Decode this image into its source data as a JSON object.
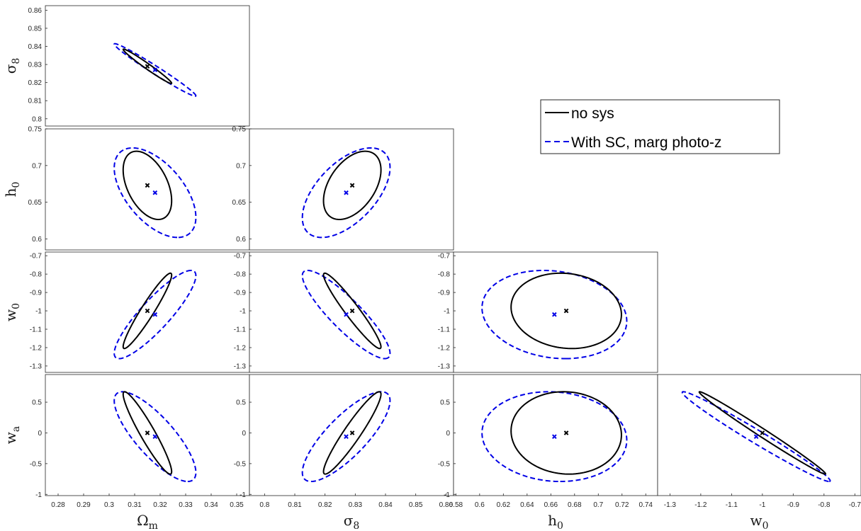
{
  "chart_data": {
    "type": "scatter",
    "description_kind": "triangle (corner) plot of 1-sigma Fisher ellipses",
    "legend": {
      "placement": "right, upper-middle",
      "entries": [
        {
          "label": "no sys",
          "color": "#000000",
          "style": "solid"
        },
        {
          "label": "With SC, marg photo-z",
          "color": "#0000e6",
          "style": "dashed"
        }
      ]
    },
    "colors": {
      "nosys": "#000000",
      "sc": "#0000e6",
      "frame": "#262626"
    },
    "params": {
      "om": {
        "label_base": "Ω",
        "label_sub": "m",
        "range": [
          0.275,
          0.355
        ],
        "ticks": [
          "0.28",
          "0.29",
          "0.3",
          "0.31",
          "0.32",
          "0.33",
          "0.34",
          "0.35"
        ]
      },
      "s8": {
        "label_base": "σ",
        "label_sub": "8",
        "range": [
          0.795,
          0.8625
        ],
        "ticks": [
          "0.8",
          "0.81",
          "0.82",
          "0.83",
          "0.84",
          "0.85",
          "0.86"
        ]
      },
      "h0": {
        "label_base": "h",
        "label_sub": "0",
        "range": [
          0.578,
          0.75
        ],
        "ticks": [
          "0.58",
          "0.6",
          "0.62",
          "0.64",
          "0.66",
          "0.68",
          "0.7",
          "0.72",
          "0.74"
        ]
      },
      "w0": {
        "label_base": "w",
        "label_sub": "0",
        "range": [
          -1.34,
          -0.68
        ],
        "ticks": [
          "-1.3",
          "-1.2",
          "-1.1",
          "-1",
          "-0.9",
          "-0.8",
          "-0.7"
        ]
      },
      "wa": {
        "label_base": "w",
        "label_sub": "a",
        "range": [
          -1.02,
          0.95
        ],
        "ticks": [
          "-1",
          "-0.5",
          "0",
          "0.5"
        ]
      }
    },
    "fiducial": {
      "nosys": {
        "om": 0.315,
        "s8": 0.829,
        "h0": 0.673,
        "w0": -1.0,
        "wa": 0.0
      },
      "sc": {
        "om": 0.318,
        "s8": 0.827,
        "h0": 0.663,
        "w0": -1.02,
        "wa": -0.06
      }
    },
    "panels": [
      {
        "x": "om",
        "y": "s8",
        "xlim": [
          0.275,
          0.355
        ],
        "ylim": [
          0.796,
          0.8625
        ],
        "yticks": [
          "0.8",
          "0.81",
          "0.82",
          "0.83",
          "0.84",
          "0.85",
          "0.86"
        ],
        "xticks": [],
        "ellipses": {
          "nosys": {
            "cx": 0.315,
            "cy": 0.829,
            "sx": 0.0095,
            "sy": 0.0095,
            "rho": -0.982
          },
          "sc": {
            "cx": 0.318,
            "cy": 0.827,
            "sx": 0.016,
            "sy": 0.0145,
            "rho": -0.984
          }
        }
      },
      {
        "x": "om",
        "y": "h0",
        "xlim": [
          0.275,
          0.355
        ],
        "ylim": [
          0.585,
          0.75
        ],
        "yticks": [
          "0.6",
          "0.65",
          "0.7",
          "0.75"
        ],
        "xticks": [],
        "ellipses": {
          "nosys": {
            "cx": 0.315,
            "cy": 0.673,
            "sx": 0.0095,
            "sy": 0.0465,
            "rho": -0.45
          },
          "sc": {
            "cx": 0.318,
            "cy": 0.663,
            "sx": 0.016,
            "sy": 0.061,
            "rho": -0.55
          }
        }
      },
      {
        "x": "s8",
        "y": "h0",
        "xlim": [
          0.795,
          0.8625
        ],
        "ylim": [
          0.585,
          0.75
        ],
        "yticks": [
          "0.6",
          "0.65",
          "0.7",
          "0.75"
        ],
        "xticks": [],
        "ellipses": {
          "nosys": {
            "cx": 0.829,
            "cy": 0.673,
            "sx": 0.0095,
            "sy": 0.0465,
            "rho": 0.45
          },
          "sc": {
            "cx": 0.827,
            "cy": 0.663,
            "sx": 0.0145,
            "sy": 0.061,
            "rho": 0.56
          }
        }
      },
      {
        "x": "om",
        "y": "w0",
        "xlim": [
          0.275,
          0.355
        ],
        "ylim": [
          -1.335,
          -0.68
        ],
        "yticks": [
          "-1.3",
          "-1.2",
          "-1.1",
          "-1",
          "-0.9",
          "-0.8",
          "-0.7"
        ],
        "xticks": [],
        "ellipses": {
          "nosys": {
            "cx": 0.315,
            "cy": -1.0,
            "sx": 0.0095,
            "sy": 0.205,
            "rho": 0.95
          },
          "sc": {
            "cx": 0.318,
            "cy": -1.02,
            "sx": 0.016,
            "sy": 0.24,
            "rho": 0.88
          }
        }
      },
      {
        "x": "s8",
        "y": "w0",
        "xlim": [
          0.795,
          0.8625
        ],
        "ylim": [
          -1.335,
          -0.68
        ],
        "yticks": [
          "-1.3",
          "-1.2",
          "-1.1",
          "-1",
          "-0.9",
          "-0.8",
          "-0.7"
        ],
        "xticks": [],
        "ellipses": {
          "nosys": {
            "cx": 0.829,
            "cy": -1.0,
            "sx": 0.0095,
            "sy": 0.205,
            "rho": -0.955
          },
          "sc": {
            "cx": 0.827,
            "cy": -1.02,
            "sx": 0.0145,
            "sy": 0.24,
            "rho": -0.88
          }
        }
      },
      {
        "x": "h0",
        "y": "w0",
        "xlim": [
          0.578,
          0.75
        ],
        "ylim": [
          -1.335,
          -0.68
        ],
        "yticks": [
          "-1.3",
          "-1.2",
          "-1.1",
          "-1",
          "-0.9",
          "-0.8",
          "-0.7"
        ],
        "xticks": [],
        "ellipses": {
          "nosys": {
            "cx": 0.673,
            "cy": -1.0,
            "sx": 0.0465,
            "sy": 0.205,
            "rho": -0.1
          },
          "sc": {
            "cx": 0.663,
            "cy": -1.02,
            "sx": 0.061,
            "sy": 0.24,
            "rho": -0.15
          }
        }
      },
      {
        "x": "om",
        "y": "wa",
        "xlim": [
          0.275,
          0.355
        ],
        "ylim": [
          -1.02,
          0.95
        ],
        "yticks": [
          "-1",
          "-0.5",
          "0",
          "0.5"
        ],
        "xticks": [
          "0.28",
          "0.29",
          "0.3",
          "0.31",
          "0.32",
          "0.33",
          "0.34",
          "0.35"
        ],
        "ellipses": {
          "nosys": {
            "cx": 0.315,
            "cy": 0.0,
            "sx": 0.0095,
            "sy": 0.67,
            "rho": -0.94
          },
          "sc": {
            "cx": 0.318,
            "cy": -0.06,
            "sx": 0.016,
            "sy": 0.73,
            "rho": -0.8
          }
        }
      },
      {
        "x": "s8",
        "y": "wa",
        "xlim": [
          0.795,
          0.8625
        ],
        "ylim": [
          -1.02,
          0.95
        ],
        "yticks": [
          "-1",
          "-0.5",
          "0",
          "0.5"
        ],
        "xticks": [
          "0.8",
          "0.81",
          "0.82",
          "0.83",
          "0.84",
          "0.85",
          "0.86"
        ],
        "ellipses": {
          "nosys": {
            "cx": 0.829,
            "cy": 0.0,
            "sx": 0.0095,
            "sy": 0.67,
            "rho": 0.94
          },
          "sc": {
            "cx": 0.827,
            "cy": -0.06,
            "sx": 0.0145,
            "sy": 0.73,
            "rho": 0.8
          }
        }
      },
      {
        "x": "h0",
        "y": "wa",
        "xlim": [
          0.578,
          0.75
        ],
        "ylim": [
          -1.02,
          0.95
        ],
        "yticks": [
          "-1",
          "-0.5",
          "0",
          "0.5"
        ],
        "xticks": [
          "0.58",
          "0.6",
          "0.62",
          "0.64",
          "0.66",
          "0.68",
          "0.7",
          "0.72",
          "0.74"
        ],
        "ellipses": {
          "nosys": {
            "cx": 0.673,
            "cy": 0.0,
            "sx": 0.0465,
            "sy": 0.67,
            "rho": -0.05
          },
          "sc": {
            "cx": 0.663,
            "cy": -0.06,
            "sx": 0.061,
            "sy": 0.73,
            "rho": -0.08
          }
        }
      },
      {
        "x": "w0",
        "y": "wa",
        "xlim": [
          -1.34,
          -0.68
        ],
        "ylim": [
          -1.02,
          0.95
        ],
        "yticks": [],
        "xticks": [
          "-1.3",
          "-1.2",
          "-1.1",
          "-1",
          "-0.9",
          "-0.8",
          "-0.7"
        ],
        "ellipses": {
          "nosys": {
            "cx": -1.0,
            "cy": 0.0,
            "sx": 0.205,
            "sy": 0.67,
            "rho": -0.993
          },
          "sc": {
            "cx": -1.02,
            "cy": -0.06,
            "sx": 0.24,
            "sy": 0.73,
            "rho": -0.985
          }
        }
      }
    ]
  }
}
